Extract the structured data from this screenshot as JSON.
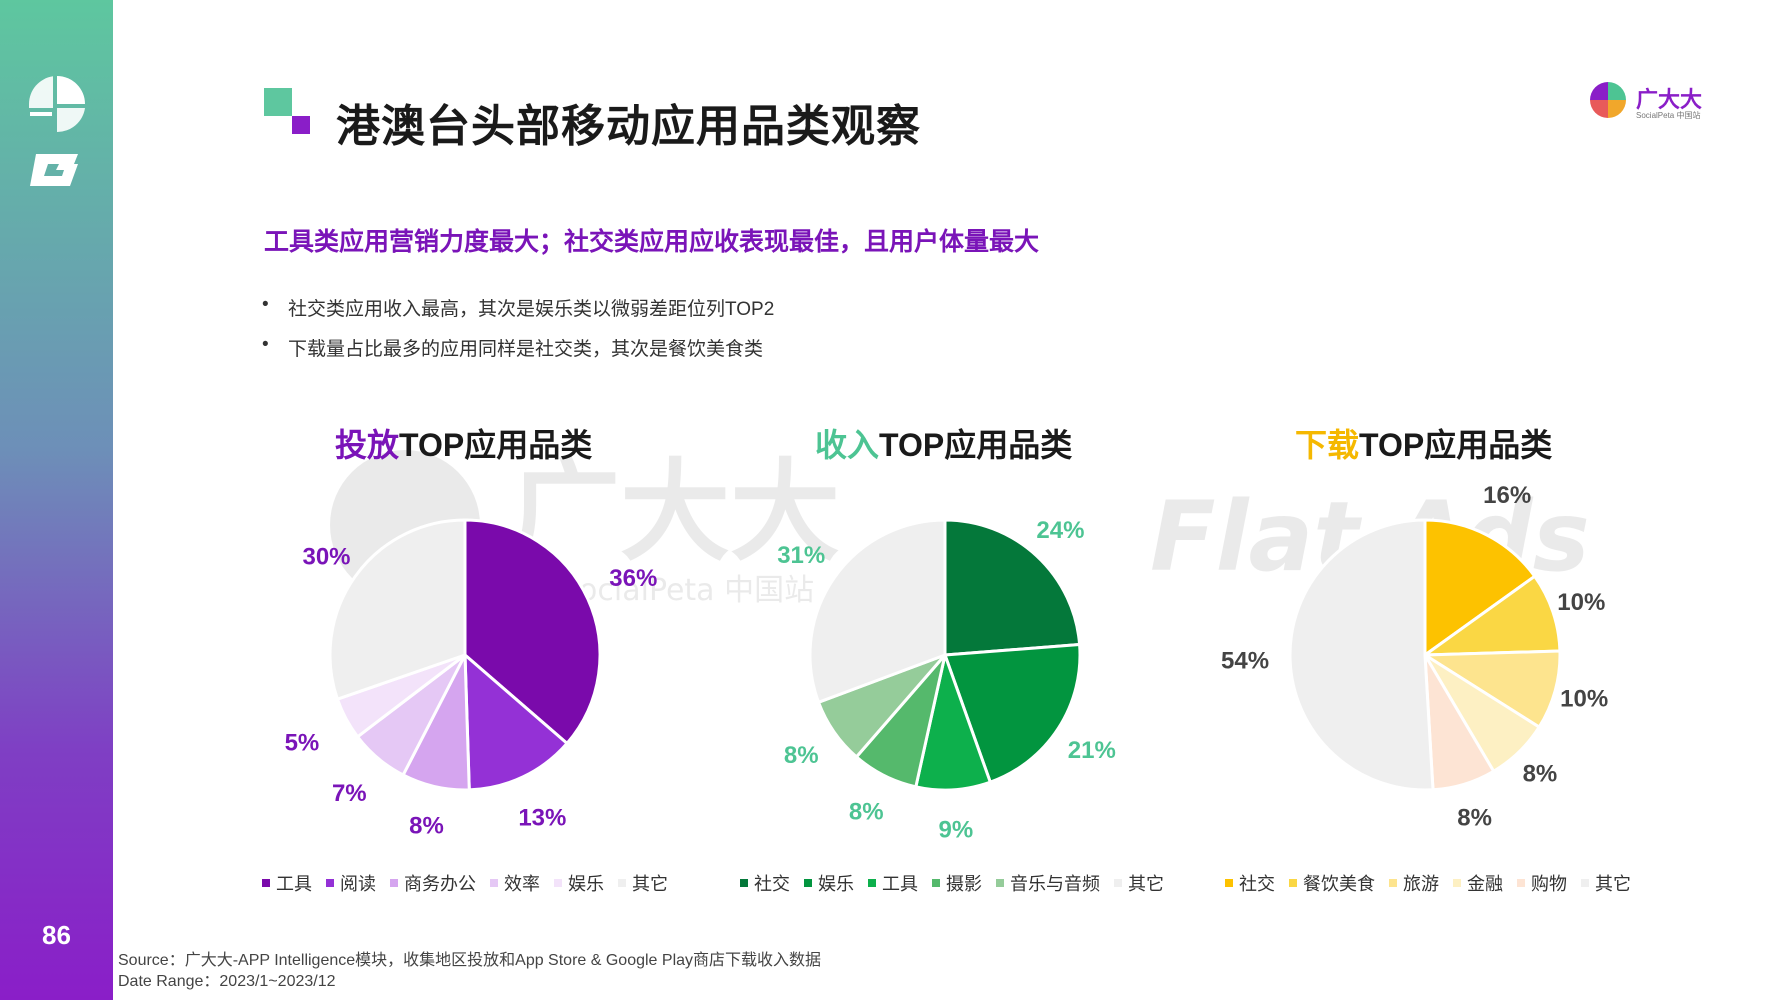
{
  "page": {
    "number": "86"
  },
  "header": {
    "title": "港澳台头部移动应用品类观察",
    "brand_name": "广大大",
    "brand_sub": "SocialPeta 中国站"
  },
  "headline": "工具类应用营销力度最大；社交类应用应收表现最佳，且用户体量最大",
  "bullets": [
    "社交类应用收入最高，其次是娱乐类以微弱差距位列TOP2",
    "下载量占比最多的应用同样是社交类，其次是餐饮美食类"
  ],
  "footer": {
    "source": "Source：广大大-APP Intelligence模块，收集地区投放和App Store & Google Play商店下载收入数据",
    "date_range": "Date Range：2023/1~2023/12"
  },
  "watermark": {
    "brand": "广大大",
    "sub": "SocialPeta 中国站",
    "ads": "Flat Ads"
  },
  "chart_data": [
    {
      "type": "pie",
      "title_highlight": "投放",
      "title_rest": "TOP应用品类",
      "title_color": "#7a14b8",
      "label_color": "#7a14b8",
      "categories": [
        "工具",
        "阅读",
        "商务办公",
        "效率",
        "娱乐",
        "其它"
      ],
      "values": [
        36,
        13,
        8,
        7,
        5,
        30
      ],
      "labels": [
        "36%",
        "13%",
        "8%",
        "7%",
        "5%",
        "30%"
      ],
      "colors": [
        "#7a0aab",
        "#9431d6",
        "#d5a5ef",
        "#e5c8f5",
        "#f3e3fa",
        "#efefef"
      ]
    },
    {
      "type": "pie",
      "title_highlight": "收入",
      "title_rest": "TOP应用品类",
      "title_color": "#4dc493",
      "label_color": "#4dc493",
      "categories": [
        "社交",
        "娱乐",
        "工具",
        "摄影",
        "音乐与音频",
        "其它"
      ],
      "values": [
        24,
        21,
        9,
        8,
        8,
        31
      ],
      "labels": [
        "24%",
        "21%",
        "9%",
        "8%",
        "8%",
        "31%"
      ],
      "colors": [
        "#04783a",
        "#02953f",
        "#0db04c",
        "#55b96c",
        "#95cc9a",
        "#efefef"
      ]
    },
    {
      "type": "pie",
      "title_highlight": "下载",
      "title_rest": "TOP应用品类",
      "title_color": "#f5b800",
      "label_color": "#444444",
      "categories": [
        "社交",
        "餐饮美食",
        "旅游",
        "金融",
        "购物",
        "其它"
      ],
      "values": [
        16,
        10,
        10,
        8,
        8,
        54
      ],
      "labels": [
        "16%",
        "10%",
        "10%",
        "8%",
        "8%",
        "54%"
      ],
      "colors": [
        "#fdc200",
        "#fad744",
        "#fde48e",
        "#fdf0c3",
        "#fde4d4",
        "#efefef"
      ]
    }
  ]
}
